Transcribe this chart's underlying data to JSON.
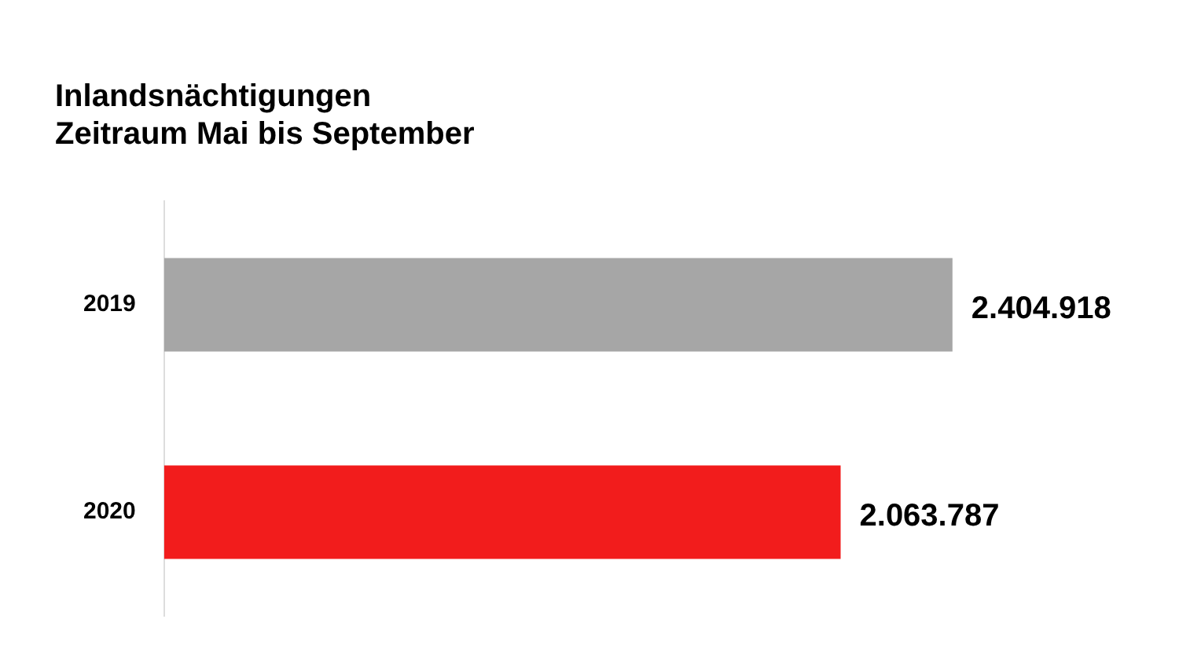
{
  "chart_data": {
    "type": "bar",
    "orientation": "horizontal",
    "title": "Inlandsnächtigungen\nZeitraum Mai bis September",
    "categories": [
      "2019",
      "2020"
    ],
    "values": [
      2404918,
      2063787
    ],
    "colors": [
      "#a6a6a6",
      "#f21c1c"
    ],
    "value_labels": [
      "2.404.918",
      "2.063.787"
    ],
    "tick_labels": "y",
    "grid": false,
    "legend": false
  }
}
